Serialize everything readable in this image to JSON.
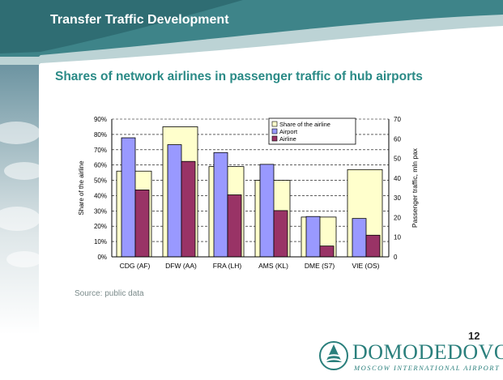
{
  "header": {
    "title": "Transfer Traffic Development"
  },
  "subtitle": "Shares of network airlines in passenger traffic of hub airports",
  "source_note": "Source: public data",
  "page_number": "12",
  "logo": {
    "wordmark": "DOMODEDOVO",
    "tagline": "MOSCOW INTERNATIONAL AIRPORT"
  },
  "colors": {
    "accent_teal": "#2a8a86",
    "share_fill": "#ffffcc",
    "airport_fill": "#9999ff",
    "airline_fill": "#993366"
  },
  "chart_data": {
    "type": "bar",
    "categories": [
      "CDG (AF)",
      "DFW (AA)",
      "FRA (LH)",
      "AMS (KL)",
      "DME (S7)",
      "VIE (OS)"
    ],
    "ylabel": "Share of the airline",
    "y2label": "Passenger traffic, mln pax",
    "ylim": [
      0,
      90
    ],
    "y2lim": [
      0,
      70
    ],
    "yticks": [
      "0%",
      "10%",
      "20%",
      "30%",
      "40%",
      "50%",
      "60%",
      "70%",
      "80%",
      "90%"
    ],
    "y2ticks": [
      "0",
      "10",
      "20",
      "30",
      "40",
      "50",
      "60",
      "70"
    ],
    "grid": true,
    "legend_position": "top-right",
    "series": [
      {
        "name": "Share of the airline",
        "axis": "left",
        "values": [
          56,
          85,
          59,
          50,
          26,
          57
        ]
      },
      {
        "name": "Airport",
        "axis": "right",
        "values": [
          60.5,
          57,
          53,
          47,
          20.5,
          19.5
        ]
      },
      {
        "name": "Airline",
        "axis": "right",
        "values": [
          34,
          48.5,
          31.5,
          23.5,
          5.5,
          11
        ]
      }
    ]
  }
}
